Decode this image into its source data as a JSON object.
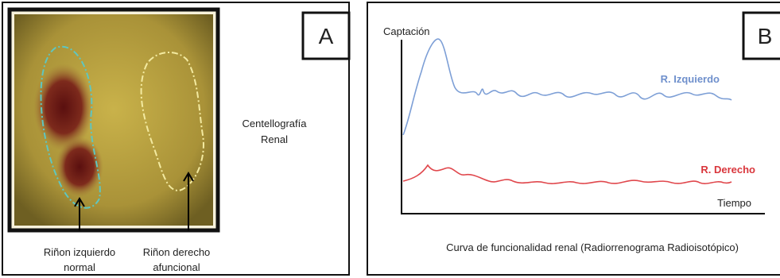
{
  "panel_a": {
    "letter": "A",
    "caption": [
      "Centellografía",
      "Renal"
    ],
    "left_kidney": [
      "Riñon izquierdo",
      "normal"
    ],
    "right_kidney": [
      "Riñon derecho",
      "afuncional"
    ]
  },
  "panel_b": {
    "letter": "B",
    "y_axis": "Captación",
    "x_axis": "Tiempo",
    "left_curve": "R. Izquierdo",
    "right_curve": "R. Derecho",
    "caption": "Curva de funcionalidad renal (Radiorrenograma  Radioisotópico)"
  }
}
